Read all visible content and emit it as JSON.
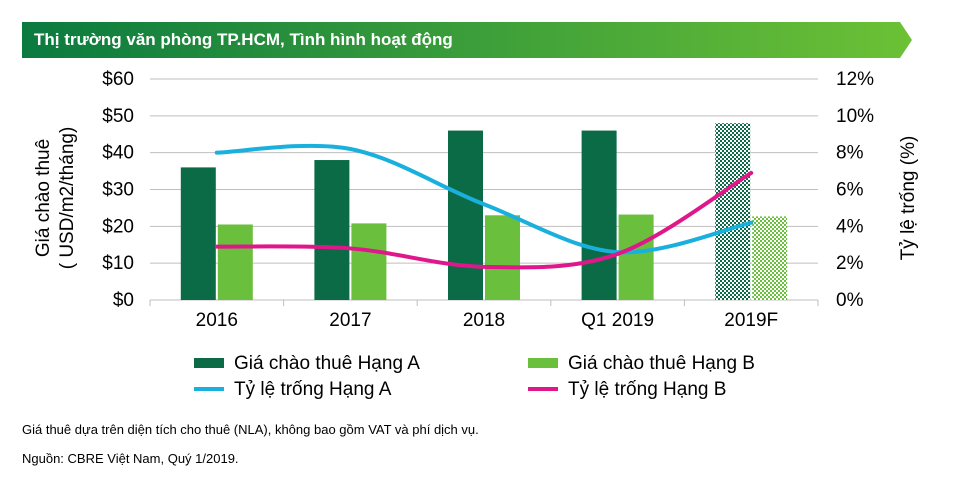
{
  "header": {
    "title": "Thị trường văn phòng TP.HCM, Tình hình hoạt động"
  },
  "colors": {
    "banner_start": "#0a7a3f",
    "banner_end": "#6cc135",
    "grade_a_bar": "#0c6b47",
    "grade_b_bar": "#6abf3d",
    "vacancy_a_line": "#1ab0de",
    "vacancy_b_line": "#e0178a",
    "grid": "#bfbfbf"
  },
  "chart_data": {
    "type": "bar",
    "categories": [
      "2016",
      "2017",
      "2018",
      "Q1 2019",
      "2019F"
    ],
    "series": [
      {
        "name": "Giá chào thuê Hạng A",
        "kind": "bar",
        "axis": "left",
        "values": [
          36,
          38,
          46,
          46,
          48
        ],
        "forecast_pattern_last": true
      },
      {
        "name": "Giá chào thuê Hạng B",
        "kind": "bar",
        "axis": "left",
        "values": [
          20.5,
          20.8,
          23,
          23.2,
          22.7
        ],
        "forecast_pattern_last": true
      },
      {
        "name": "Tỷ lệ trống Hạng A",
        "kind": "line",
        "axis": "right",
        "values": [
          8.0,
          8.2,
          5.2,
          2.6,
          4.2
        ]
      },
      {
        "name": "Tỷ lệ trống Hạng B",
        "kind": "line",
        "axis": "right",
        "values": [
          2.9,
          2.8,
          1.8,
          2.5,
          6.9
        ]
      }
    ],
    "left_axis": {
      "label_line1": "Giá chào thuê",
      "label_line2": "( USD/m2/tháng)",
      "min": 0,
      "max": 60,
      "step": 10,
      "tick_labels": [
        "$0",
        "$10",
        "$20",
        "$30",
        "$40",
        "$50",
        "$60"
      ]
    },
    "right_axis": {
      "label": "Tỷ lệ trống (%)",
      "min": 0,
      "max": 12,
      "step": 2,
      "tick_labels": [
        "0%",
        "2%",
        "4%",
        "6%",
        "8%",
        "10%",
        "12%"
      ]
    },
    "grid": true,
    "legend": [
      "Giá chào thuê Hạng A",
      "Giá chào thuê Hạng B",
      "Tỷ lệ trống Hạng A",
      "Tỷ lệ trống Hạng B"
    ]
  },
  "footer": {
    "note": "Giá thuê dựa trên diện tích cho thuê (NLA), không bao gồm VAT và phí dịch vụ.",
    "source": "Nguồn: CBRE Việt Nam, Quý 1/2019."
  }
}
